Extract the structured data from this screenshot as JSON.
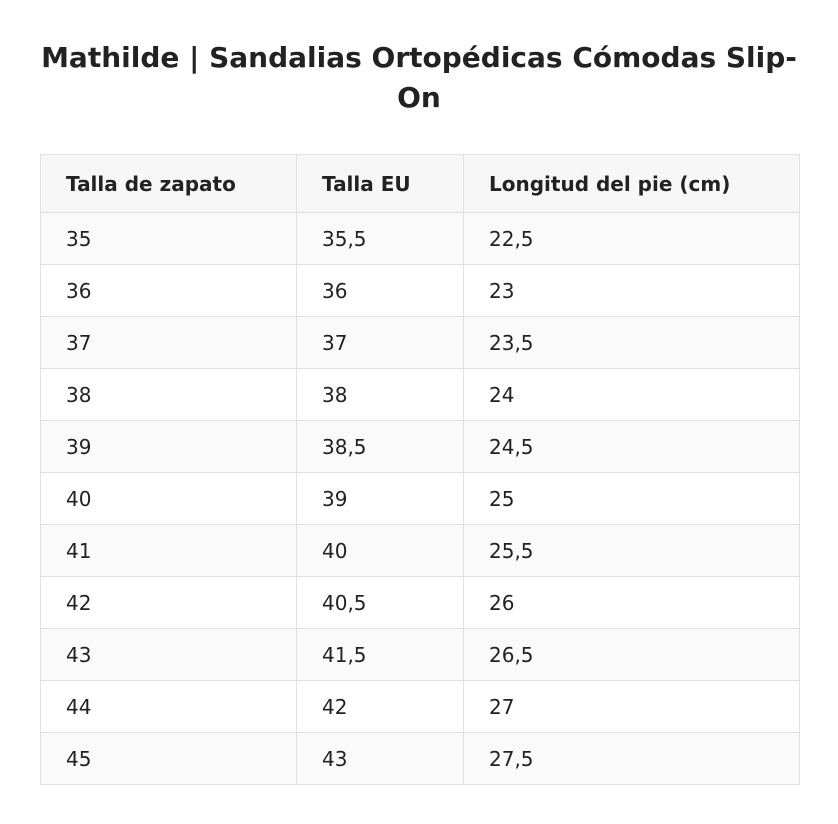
{
  "title": "Mathilde | Sandalias Ortopédicas Cómodas Slip-On",
  "table": {
    "headers": [
      "Talla de zapato",
      "Talla EU",
      "Longitud del pie (cm)"
    ],
    "rows": [
      [
        "35",
        "35,5",
        "22,5"
      ],
      [
        "36",
        "36",
        "23"
      ],
      [
        "37",
        "37",
        "23,5"
      ],
      [
        "38",
        "38",
        "24"
      ],
      [
        "39",
        "38,5",
        "24,5"
      ],
      [
        "40",
        "39",
        "25"
      ],
      [
        "41",
        "40",
        "25,5"
      ],
      [
        "42",
        "40,5",
        "26"
      ],
      [
        "43",
        "41,5",
        "26,5"
      ],
      [
        "44",
        "42",
        "27"
      ],
      [
        "45",
        "43",
        "27,5"
      ]
    ]
  }
}
